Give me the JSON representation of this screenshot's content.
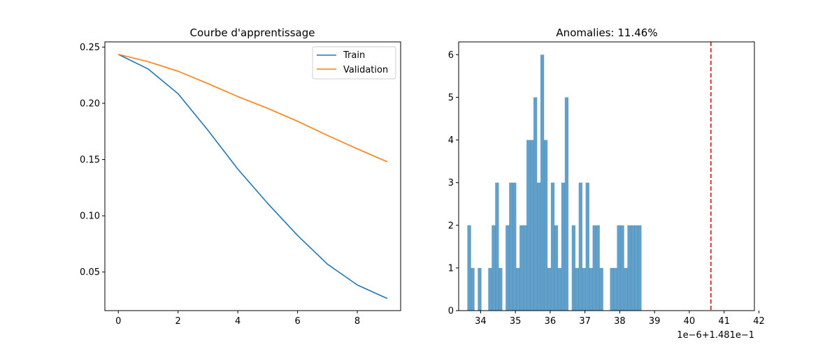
{
  "chart_data": [
    {
      "type": "line",
      "title": "Courbe d'apprentissage",
      "x": [
        0,
        1,
        2,
        3,
        4,
        5,
        6,
        7,
        8,
        9
      ],
      "series": [
        {
          "name": "Train",
          "color": "#1f77b4",
          "values": [
            0.2435,
            0.2305,
            0.2085,
            0.176,
            0.1415,
            0.111,
            0.0825,
            0.057,
            0.0385,
            0.0265
          ]
        },
        {
          "name": "Validation",
          "color": "#ff7f0e",
          "values": [
            0.2435,
            0.237,
            0.2285,
            0.2175,
            0.206,
            0.1955,
            0.184,
            0.1715,
            0.1595,
            0.148
          ]
        }
      ],
      "xlim": [
        -0.45,
        9.45
      ],
      "ylim": [
        0.0157,
        0.2546
      ],
      "xticks": [
        0,
        2,
        4,
        6,
        8
      ],
      "xtick_labels": [
        "0",
        "2",
        "4",
        "6",
        "8"
      ],
      "yticks": [
        0.05,
        0.1,
        0.15,
        0.2,
        0.25
      ],
      "ytick_labels": [
        "0.05",
        "0.10",
        "0.15",
        "0.20",
        "0.25"
      ],
      "legend_position": "upper-right",
      "grid": false
    },
    {
      "type": "histogram",
      "title": "Anomalies: 11.46%",
      "color": "#1f77b4",
      "bar_opacity": 0.7,
      "bin_start": 33.62,
      "bin_width": 0.1,
      "counts": [
        2,
        1,
        0,
        1,
        0,
        0,
        1,
        2,
        3,
        1,
        0,
        2,
        3,
        3,
        1,
        2,
        2,
        4,
        4,
        5,
        3,
        6,
        4,
        1,
        3,
        2,
        1,
        3,
        5,
        0,
        2,
        1,
        3,
        1,
        3,
        1,
        2,
        2,
        1,
        0,
        0,
        1,
        1,
        2,
        2,
        1,
        2,
        2,
        2,
        2
      ],
      "xlim": [
        33.37,
        41.87
      ],
      "ylim": [
        0,
        6.3
      ],
      "xticks": [
        34,
        35,
        36,
        37,
        38,
        39,
        40,
        41,
        42
      ],
      "xtick_labels": [
        "34",
        "35",
        "36",
        "37",
        "38",
        "39",
        "40",
        "41",
        "42"
      ],
      "yticks": [
        0,
        1,
        2,
        3,
        4,
        5,
        6
      ],
      "ytick_labels": [
        "0",
        "1",
        "2",
        "3",
        "4",
        "5",
        "6"
      ],
      "offset_label": "1e−6+1.481e−1",
      "threshold": 40.62,
      "threshold_color": "#d62728",
      "grid": false
    }
  ]
}
